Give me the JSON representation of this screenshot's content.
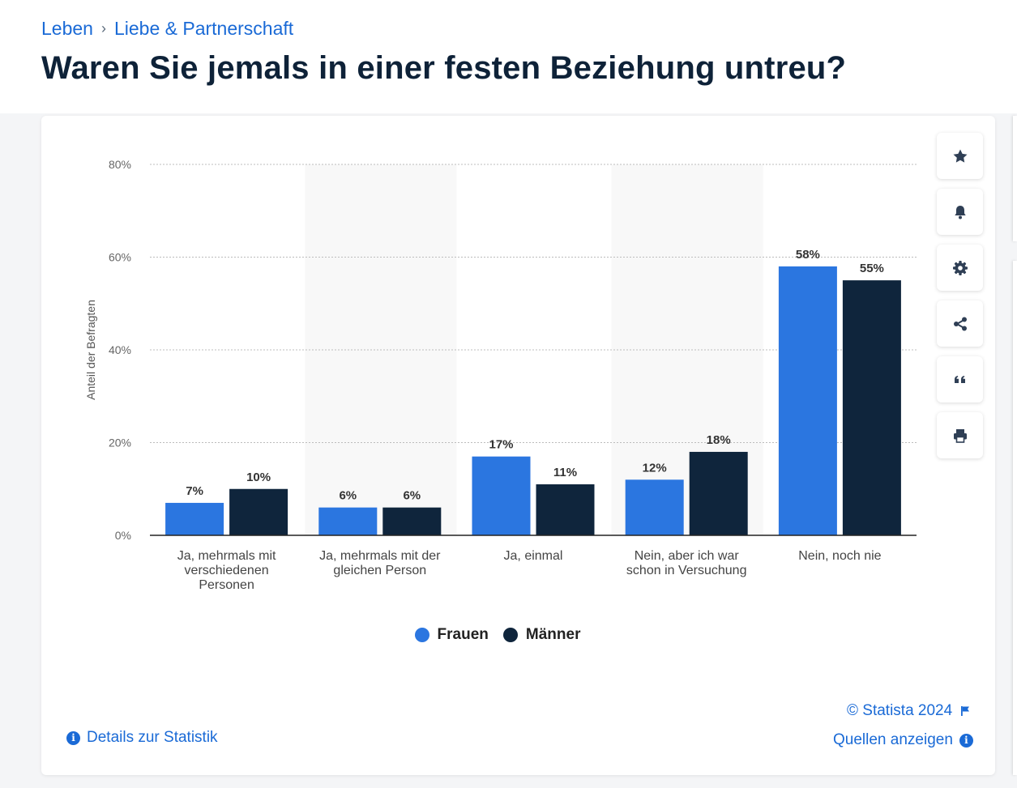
{
  "breadcrumb": [
    "Leben",
    "Liebe & Partnerschaft"
  ],
  "page_title": "Waren Sie jemals in einer festen Beziehung untreu?",
  "toolbar": [
    "star-icon",
    "bell-icon",
    "gear-icon",
    "share-icon",
    "quote-icon",
    "print-icon"
  ],
  "footer": {
    "copyright": "© Statista 2024",
    "sources": "Quellen anzeigen",
    "details": "Details zur Statistik"
  },
  "chart_data": {
    "type": "bar",
    "title": "",
    "xlabel": "",
    "ylabel": "Anteil der Befragten",
    "ylim": [
      0,
      80
    ],
    "yticks": [
      "0%",
      "20%",
      "40%",
      "60%",
      "80%"
    ],
    "grid": true,
    "legend_position": "bottom",
    "categories": [
      [
        "Ja, mehrmals mit",
        "verschiedenen",
        "Personen"
      ],
      [
        "Ja, mehrmals mit der",
        "gleichen Person"
      ],
      [
        "Ja, einmal"
      ],
      [
        "Nein, aber ich war",
        "schon in Versuchung"
      ],
      [
        "Nein, noch nie"
      ]
    ],
    "series": [
      {
        "name": "Frauen",
        "color": "#2b76e0",
        "values": [
          7,
          6,
          17,
          12,
          58
        ],
        "labels": [
          "7%",
          "6%",
          "17%",
          "12%",
          "58%"
        ]
      },
      {
        "name": "Männer",
        "color": "#0f253c",
        "values": [
          10,
          6,
          11,
          18,
          55
        ],
        "labels": [
          "10%",
          "6%",
          "11%",
          "18%",
          "55%"
        ]
      }
    ]
  }
}
